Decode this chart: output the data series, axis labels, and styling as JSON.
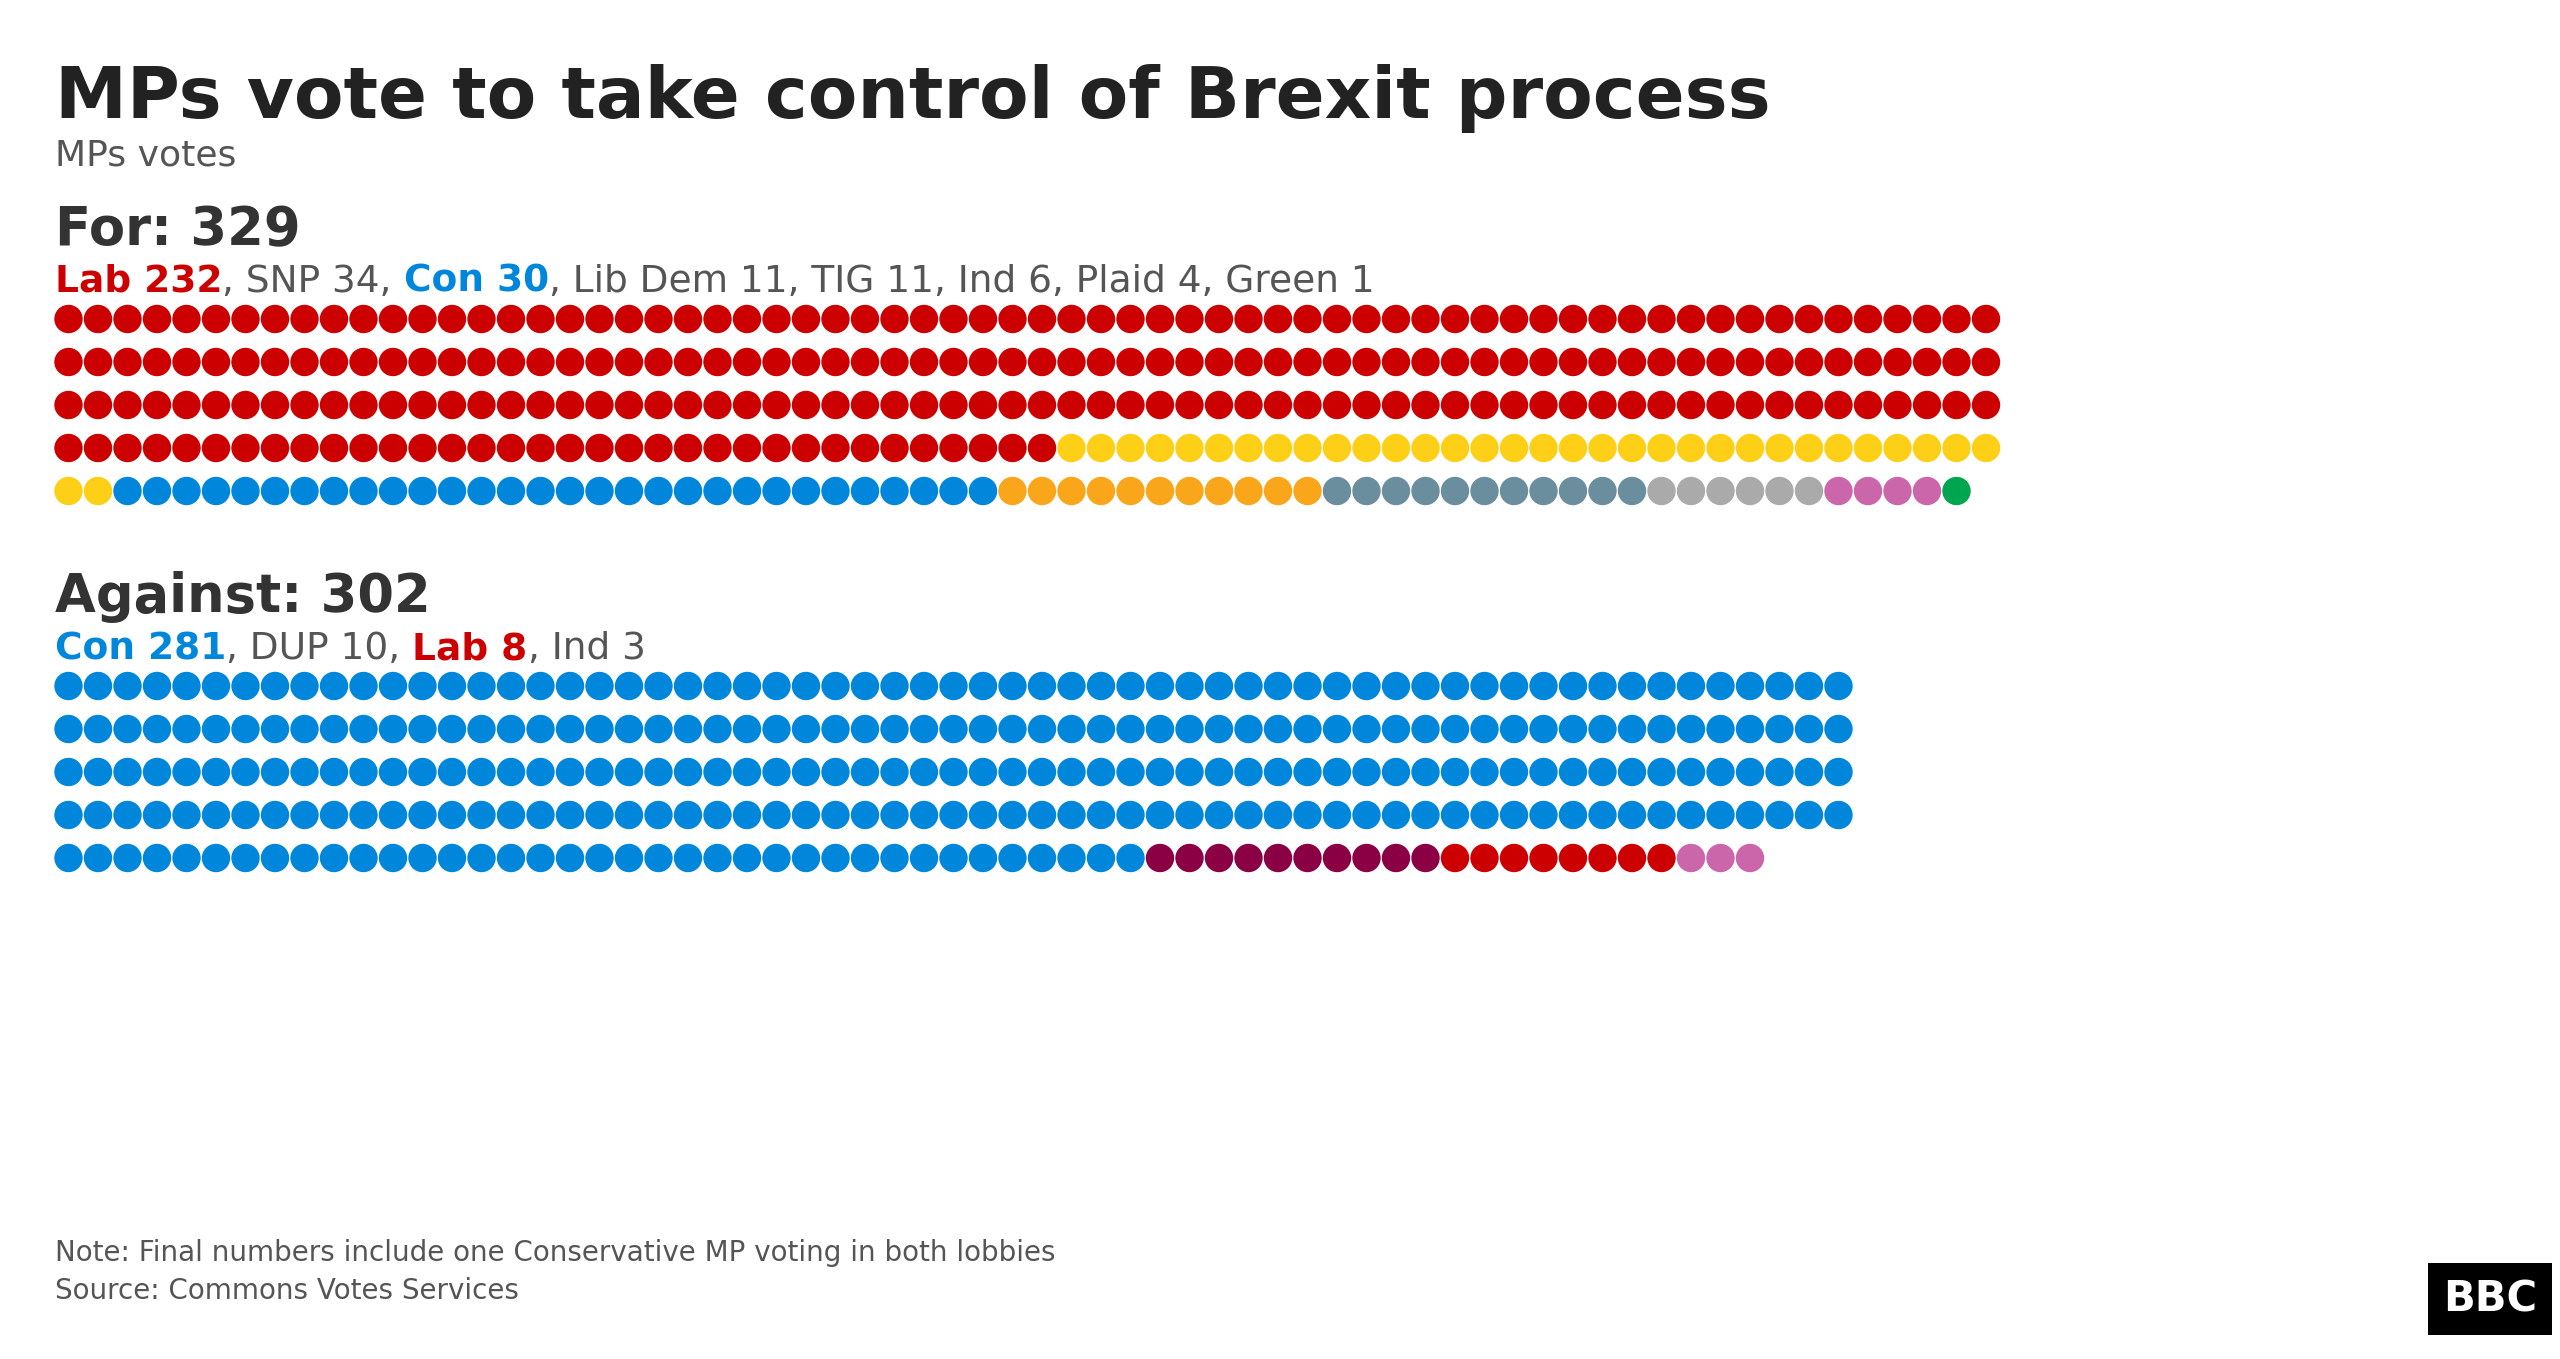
{
  "title": "MPs vote to take control of Brexit process",
  "subtitle": "MPs votes",
  "for_label": "For: 329",
  "against_label": "Against: 302",
  "for_breakdown": [
    {
      "party": "Lab",
      "count": 232,
      "color": "#cc0000"
    },
    {
      "party": "SNP",
      "count": 34,
      "color": "#FDD017"
    },
    {
      "party": "Con",
      "count": 30,
      "color": "#0087dc"
    },
    {
      "party": "Lib Dem",
      "count": 11,
      "color": "#FAA61A"
    },
    {
      "party": "TIG",
      "count": 11,
      "color": "#6B8E9F"
    },
    {
      "party": "Ind",
      "count": 6,
      "color": "#AAAAAA"
    },
    {
      "party": "Plaid",
      "count": 4,
      "color": "#CC66AA"
    },
    {
      "party": "Green",
      "count": 1,
      "color": "#00A550"
    }
  ],
  "against_breakdown": [
    {
      "party": "Con",
      "count": 281,
      "color": "#0087dc"
    },
    {
      "party": "DUP",
      "count": 10,
      "color": "#8B0045"
    },
    {
      "party": "Lab",
      "count": 8,
      "color": "#cc0000"
    },
    {
      "party": "Ind",
      "count": 3,
      "color": "#CC66AA"
    }
  ],
  "parts_for": [
    {
      "text": "Lab 232",
      "color": "#cc0000",
      "bold": true
    },
    {
      "text": ", SNP 34, ",
      "color": "#555555",
      "bold": false
    },
    {
      "text": "Con 30",
      "color": "#0087dc",
      "bold": true
    },
    {
      "text": ", Lib Dem 11, TIG 11, Ind 6, Plaid 4, Green 1",
      "color": "#555555",
      "bold": false
    }
  ],
  "parts_against": [
    {
      "text": "Con 281",
      "color": "#0087dc",
      "bold": true
    },
    {
      "text": ", DUP 10, ",
      "color": "#555555",
      "bold": false
    },
    {
      "text": "Lab 8",
      "color": "#cc0000",
      "bold": true
    },
    {
      "text": ", Ind 3",
      "color": "#555555",
      "bold": false
    }
  ],
  "note": "Note: Final numbers include one Conservative MP voting in both lobbies",
  "source": "Source: Commons Votes Services",
  "bg_color": "#ffffff",
  "title_color": "#222222",
  "for_dots_per_row": 66,
  "against_dots_per_row": 61
}
